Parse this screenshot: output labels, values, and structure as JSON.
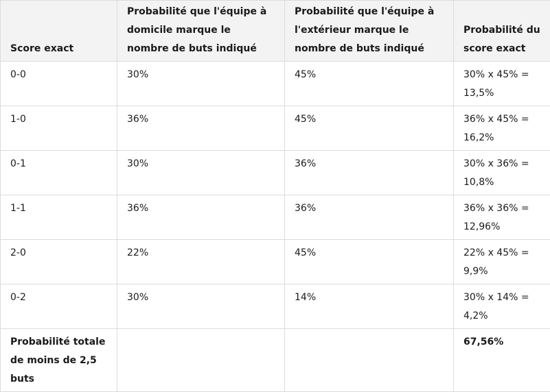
{
  "table": {
    "headers": [
      "Score exact",
      "Probabilité que l'équipe à domicile marque le nombre de buts indiqué",
      "Probabilité que l'équipe à l'extérieur marque le nombre de buts indiqué",
      "Probabilité du score exact"
    ],
    "rows": [
      [
        "0-0",
        "30%",
        "45%",
        "30% x 45% = 13,5%"
      ],
      [
        "1-0",
        "36%",
        "45%",
        "36% x 45% = 16,2%"
      ],
      [
        "0-1",
        "30%",
        "36%",
        "30% x 36% = 10,8%"
      ],
      [
        "1-1",
        "36%",
        "36%",
        "36% x 36% = 12,96%"
      ],
      [
        "2-0",
        "22%",
        "45%",
        "22% x 45% = 9,9%"
      ],
      [
        "0-2",
        "30%",
        "14%",
        "30% x 14% = 4,2%"
      ]
    ],
    "total": {
      "label": "Probabilité totale de moins de 2,5 buts",
      "home": "",
      "away": "",
      "value": "67,56%"
    }
  }
}
